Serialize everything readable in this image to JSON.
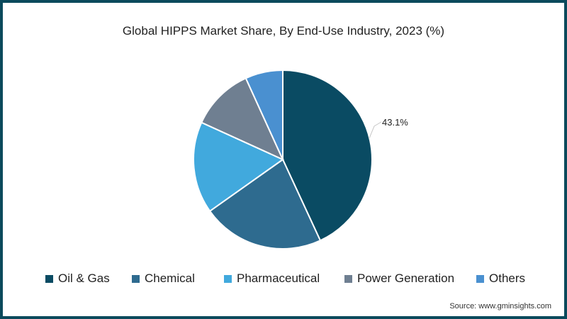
{
  "title": "Global HIPPS Market Share, By End-Use Industry, 2023 (%)",
  "source": "Source: www.gminsights.com",
  "colors": {
    "border": "#0b4a5c",
    "background": "#ffffff"
  },
  "chart_data": {
    "type": "pie",
    "title": "Global HIPPS Market Share, By End-Use Industry, 2023 (%)",
    "categories": [
      "Oil & Gas",
      "Chemical",
      "Pharmaceutical",
      "Power Generation",
      "Others"
    ],
    "values": [
      43.1,
      22.1,
      16.6,
      11.4,
      6.8
    ],
    "colors": [
      "#0a4b63",
      "#2e6b8f",
      "#41a9dd",
      "#6f7f91",
      "#4a90d0"
    ],
    "data_labels": [
      {
        "category": "Oil & Gas",
        "text": "43.1%"
      }
    ],
    "start_angle_deg": 0,
    "direction": "clockwise",
    "legend_position": "bottom"
  },
  "legend": [
    {
      "label": "Oil & Gas",
      "color": "#0a4b63"
    },
    {
      "label": "Chemical",
      "color": "#2e6b8f"
    },
    {
      "label": "Pharmaceutical",
      "color": "#41a9dd"
    },
    {
      "label": "Power Generation",
      "color": "#6f7f91"
    },
    {
      "label": "Others",
      "color": "#4a90d0"
    }
  ]
}
